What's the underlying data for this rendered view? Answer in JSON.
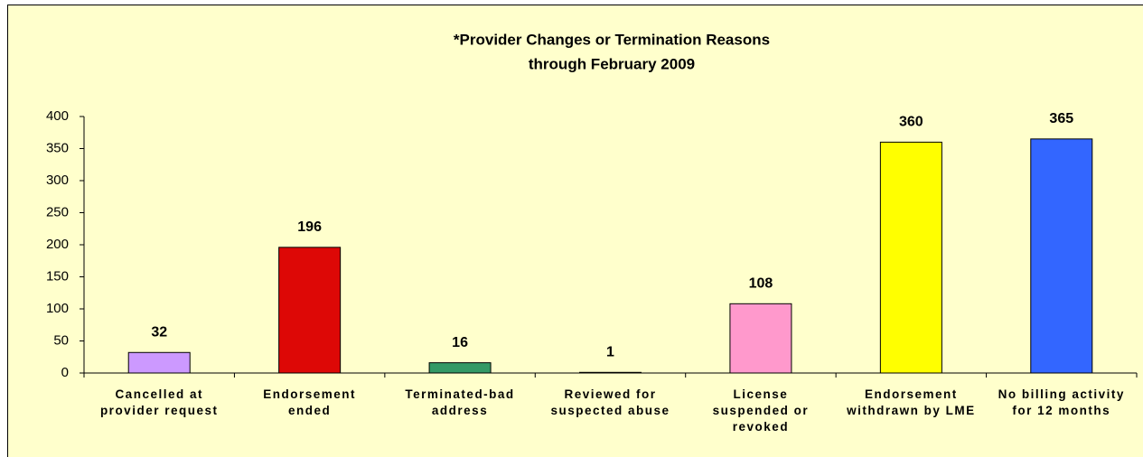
{
  "chart_data": {
    "type": "bar",
    "title": [
      "*Provider Changes or Termination Reasons",
      "through February 2009"
    ],
    "categories": [
      "Cancelled at provider request",
      "Endorsement ended",
      "Terminated-bad address",
      "Reviewed for suspected abuse",
      "License suspended or revoked",
      "Endorsement withdrawn by LME",
      "No billing activity for 12 months"
    ],
    "values": [
      32,
      196,
      16,
      1,
      108,
      360,
      365
    ],
    "colors": [
      "#CC99FF",
      "#DD0806",
      "#339966",
      "#FF9966",
      "#FF99CC",
      "#FFFF00",
      "#3366FF"
    ],
    "ylim": [
      0,
      400
    ],
    "yticks": [
      0,
      50,
      100,
      150,
      200,
      250,
      300,
      350,
      400
    ],
    "grid": false
  }
}
